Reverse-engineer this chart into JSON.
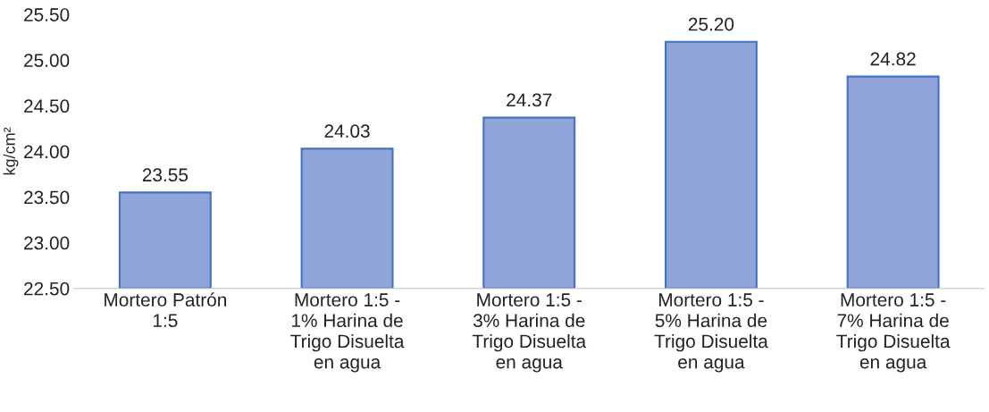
{
  "chart_data": {
    "type": "bar",
    "categories": [
      "Mortero Patrón\n1:5",
      "Mortero 1:5 -\n1% Harina de\nTrigo Disuelta\nen agua",
      "Mortero 1:5 -\n3% Harina de\nTrigo Disuelta\nen agua",
      "Mortero 1:5 -\n5% Harina de\nTrigo Disuelta\nen agua",
      "Mortero 1:5 -\n7% Harina de\nTrigo Disuelta\nen agua"
    ],
    "values": [
      23.55,
      24.03,
      24.37,
      25.2,
      24.82
    ],
    "value_labels": [
      "23.55",
      "24.03",
      "24.37",
      "25.20",
      "24.82"
    ],
    "color": "#8fa5da",
    "ylabel": "kg/cm²",
    "ylim": [
      22.5,
      25.5
    ],
    "yticks": [
      {
        "value": 22.5,
        "label": "22.50"
      },
      {
        "value": 23.0,
        "label": "23.00"
      },
      {
        "value": 23.5,
        "label": "23.50"
      },
      {
        "value": 24.0,
        "label": "24.00"
      },
      {
        "value": 24.5,
        "label": "24.50"
      },
      {
        "value": 25.0,
        "label": "25.00"
      },
      {
        "value": 25.5,
        "label": "25.50"
      }
    ],
    "grid": false,
    "legend": false
  }
}
